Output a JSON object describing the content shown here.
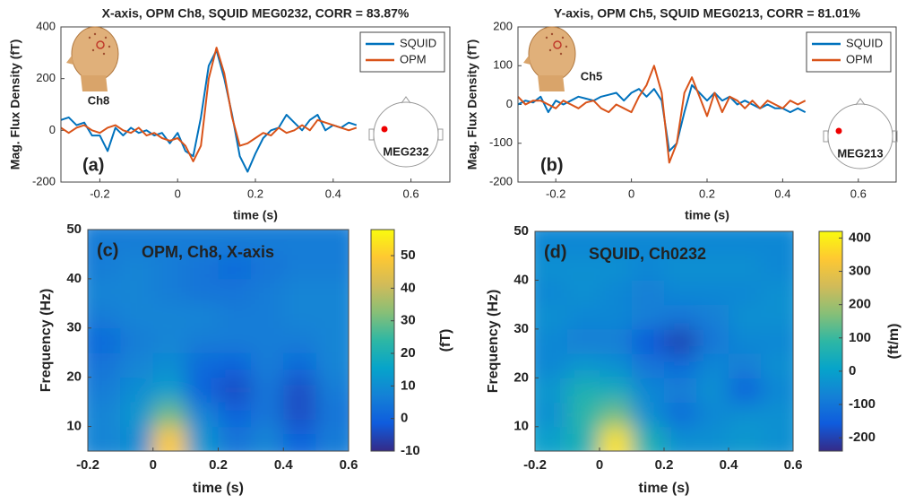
{
  "chart_data": [
    {
      "type": "line",
      "title": "X-axis, OPM Ch8, SQUID MEG0232, CORR = 83.87%",
      "xlabel": "time (s)",
      "ylabel": "Mag. Flux Density (fT)",
      "x": [
        -0.3,
        -0.28,
        -0.26,
        -0.24,
        -0.22,
        -0.2,
        -0.18,
        -0.16,
        -0.14,
        -0.12,
        -0.1,
        -0.08,
        -0.06,
        -0.04,
        -0.02,
        0,
        0.02,
        0.04,
        0.06,
        0.08,
        0.1,
        0.12,
        0.14,
        0.16,
        0.18,
        0.2,
        0.22,
        0.24,
        0.26,
        0.28,
        0.3,
        0.32,
        0.34,
        0.36,
        0.38,
        0.4,
        0.42,
        0.44,
        0.46
      ],
      "series": [
        {
          "name": "SQUID",
          "color": "#0072bd",
          "values": [
            40,
            50,
            20,
            30,
            -20,
            -20,
            -80,
            10,
            -20,
            10,
            -10,
            0,
            -20,
            -10,
            -50,
            -10,
            -80,
            -100,
            50,
            250,
            310,
            200,
            60,
            -100,
            -160,
            -90,
            -30,
            0,
            10,
            60,
            30,
            0,
            40,
            60,
            0,
            20,
            10,
            30,
            20
          ]
        },
        {
          "name": "OPM",
          "color": "#d95319",
          "values": [
            10,
            -10,
            10,
            20,
            0,
            -10,
            10,
            20,
            0,
            -10,
            10,
            -20,
            -10,
            -30,
            -40,
            -30,
            -60,
            -120,
            -60,
            200,
            320,
            220,
            50,
            -60,
            -50,
            -30,
            -10,
            -20,
            10,
            -10,
            0,
            20,
            0,
            40,
            30,
            20,
            10,
            0,
            10
          ]
        }
      ],
      "xlim": [
        -0.3,
        0.7
      ],
      "xticks": [
        -0.2,
        0,
        0.2,
        0.4,
        0.6
      ],
      "ylim": [
        -200,
        400
      ],
      "yticks": [
        -200,
        0,
        200,
        400
      ],
      "legend": "upper right",
      "panel_label": "(a)",
      "head_label": "Ch8",
      "sensor_label": "MEG232"
    },
    {
      "type": "line",
      "title": "Y-axis, OPM Ch5, SQUID MEG0213, CORR = 81.01%",
      "xlabel": "time (s)",
      "ylabel": "Mag. Flux Density (fT)",
      "x": [
        -0.3,
        -0.28,
        -0.26,
        -0.24,
        -0.22,
        -0.2,
        -0.18,
        -0.16,
        -0.14,
        -0.12,
        -0.1,
        -0.08,
        -0.06,
        -0.04,
        -0.02,
        0,
        0.02,
        0.04,
        0.06,
        0.08,
        0.1,
        0.12,
        0.14,
        0.16,
        0.18,
        0.2,
        0.22,
        0.24,
        0.26,
        0.28,
        0.3,
        0.32,
        0.34,
        0.36,
        0.38,
        0.4,
        0.42,
        0.44,
        0.46
      ],
      "series": [
        {
          "name": "SQUID",
          "color": "#0072bd",
          "values": [
            0,
            10,
            5,
            20,
            -20,
            10,
            0,
            10,
            20,
            15,
            10,
            20,
            25,
            30,
            10,
            30,
            40,
            20,
            40,
            10,
            -120,
            -100,
            -20,
            50,
            30,
            10,
            30,
            10,
            20,
            0,
            10,
            0,
            -10,
            0,
            -10,
            -10,
            -20,
            -10,
            -20
          ]
        },
        {
          "name": "OPM",
          "color": "#d95319",
          "values": [
            20,
            0,
            10,
            10,
            0,
            -10,
            10,
            0,
            -10,
            5,
            10,
            -10,
            -20,
            0,
            -10,
            -20,
            20,
            50,
            100,
            30,
            -150,
            -100,
            30,
            70,
            20,
            -30,
            30,
            -20,
            20,
            10,
            -10,
            10,
            -10,
            10,
            0,
            -10,
            10,
            0,
            10
          ]
        }
      ],
      "xlim": [
        -0.3,
        0.7
      ],
      "xticks": [
        -0.2,
        0,
        0.2,
        0.4,
        0.6
      ],
      "ylim": [
        -200,
        200
      ],
      "yticks": [
        -200,
        -100,
        0,
        100,
        200
      ],
      "legend": "upper right",
      "panel_label": "(b)",
      "head_label": "Ch5",
      "sensor_label": "MEG213"
    },
    {
      "type": "heatmap",
      "xlabel": "time (s)",
      "ylabel": "Frequency (Hz)",
      "colorbar_label": "(fT)",
      "panel_label": "(c)",
      "label": "OPM, Ch8, X-axis",
      "x": [
        -0.15,
        -0.05,
        0.05,
        0.15,
        0.25,
        0.35,
        0.45,
        0.55
      ],
      "y": [
        7.5,
        12.5,
        17.5,
        22.5,
        27.5,
        32.5,
        37.5,
        42.5,
        47.5
      ],
      "z": [
        [
          8,
          10,
          50,
          12,
          4,
          8,
          0,
          6
        ],
        [
          8,
          12,
          30,
          8,
          0,
          4,
          -4,
          4
        ],
        [
          6,
          10,
          14,
          0,
          -4,
          4,
          -4,
          6
        ],
        [
          4,
          8,
          10,
          2,
          0,
          6,
          2,
          8
        ],
        [
          2,
          6,
          8,
          6,
          6,
          6,
          6,
          8
        ],
        [
          6,
          8,
          8,
          8,
          6,
          6,
          8,
          8
        ],
        [
          8,
          8,
          6,
          4,
          4,
          6,
          8,
          8
        ],
        [
          6,
          8,
          6,
          4,
          2,
          4,
          6,
          6
        ],
        [
          6,
          6,
          6,
          6,
          6,
          6,
          6,
          6
        ]
      ],
      "xlim": [
        -0.2,
        0.6
      ],
      "xticks": [
        -0.2,
        0,
        0.2,
        0.4,
        0.6
      ],
      "ylim": [
        5,
        50
      ],
      "yticks": [
        10,
        20,
        30,
        40,
        50
      ],
      "zlim": [
        -10,
        58
      ],
      "zticks": [
        -10,
        0,
        10,
        20,
        30,
        40,
        50
      ],
      "colormap": [
        "#352a87",
        "#0f5cdd",
        "#1481d6",
        "#06a4ca",
        "#2eb7a4",
        "#87bf77",
        "#d1bb59",
        "#fec832",
        "#f9fb0e"
      ]
    },
    {
      "type": "heatmap",
      "xlabel": "time (s)",
      "ylabel": "Frequency (Hz)",
      "colorbar_label": "(ft/m)",
      "panel_label": "(d)",
      "label": "SQUID, Ch0232",
      "x": [
        -0.15,
        -0.05,
        0.05,
        0.15,
        0.25,
        0.35,
        0.45,
        0.55
      ],
      "y": [
        7.5,
        12.5,
        17.5,
        22.5,
        27.5,
        32.5,
        37.5,
        42.5,
        47.5
      ],
      "z": [
        [
          0,
          60,
          380,
          60,
          -40,
          -40,
          -20,
          -40
        ],
        [
          -40,
          80,
          150,
          -40,
          -120,
          -60,
          -40,
          -40
        ],
        [
          -20,
          60,
          40,
          -60,
          -80,
          -40,
          -140,
          -60
        ],
        [
          -60,
          -20,
          -40,
          -100,
          -120,
          -60,
          -80,
          -40
        ],
        [
          -60,
          -80,
          -80,
          -160,
          -200,
          -100,
          -60,
          -60
        ],
        [
          -40,
          -60,
          -60,
          -80,
          -100,
          -80,
          -40,
          -40
        ],
        [
          -60,
          -40,
          -60,
          -80,
          -60,
          -60,
          -60,
          -40
        ],
        [
          -40,
          -40,
          -40,
          -60,
          -40,
          -40,
          -40,
          -60
        ],
        [
          -60,
          -60,
          -60,
          -60,
          -60,
          -60,
          -60,
          -60
        ]
      ],
      "xlim": [
        -0.2,
        0.6
      ],
      "xticks": [
        -0.2,
        0,
        0.2,
        0.4,
        0.6
      ],
      "ylim": [
        5,
        50
      ],
      "yticks": [
        10,
        20,
        30,
        40,
        50
      ],
      "zlim": [
        -240,
        420
      ],
      "zticks": [
        -200,
        -100,
        0,
        100,
        200,
        300,
        400
      ],
      "colormap": [
        "#352a87",
        "#0f5cdd",
        "#1481d6",
        "#06a4ca",
        "#2eb7a4",
        "#87bf77",
        "#d1bb59",
        "#fec832",
        "#f9fb0e"
      ]
    }
  ]
}
